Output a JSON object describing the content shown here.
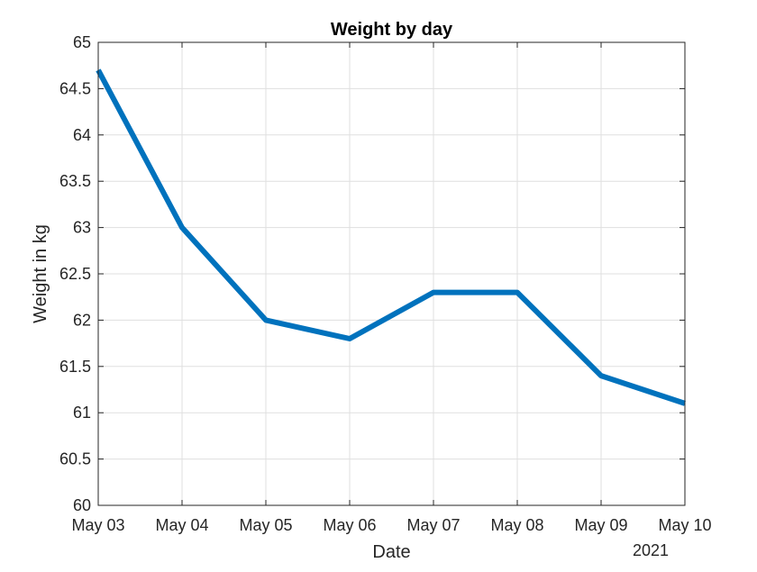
{
  "chart_data": {
    "type": "line",
    "title": "Weight by day",
    "xlabel": "Date",
    "ylabel": "Weight in kg",
    "x_secondary_label": "2021",
    "x": [
      "May 03",
      "May 04",
      "May 05",
      "May 06",
      "May 07",
      "May 08",
      "May 09",
      "May 10"
    ],
    "series": [
      {
        "values": [
          64.7,
          63.0,
          62.0,
          61.8,
          62.3,
          62.3,
          61.4,
          61.1
        ],
        "color": "#0072BD"
      }
    ],
    "ylim": [
      60,
      65
    ],
    "yticks": [
      "60",
      "60.5",
      "61",
      "61.5",
      "62",
      "62.5",
      "63",
      "63.5",
      "64",
      "64.5",
      "65"
    ],
    "grid": true,
    "legend": "none"
  }
}
